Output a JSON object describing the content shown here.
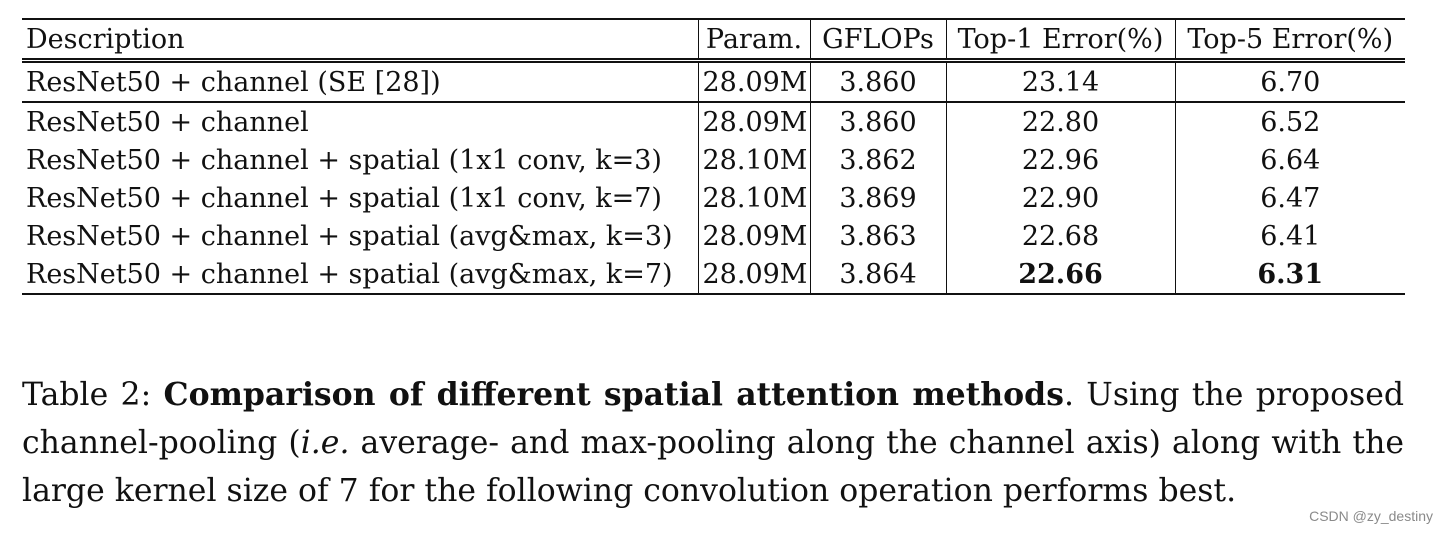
{
  "table": {
    "columns": [
      "Description",
      "Param.",
      "GFLOPs",
      "Top-1 Error(%)",
      "Top-5 Error(%)"
    ],
    "rows": [
      {
        "description": "ResNet50 + channel (SE [28])",
        "param": "28.09M",
        "gflops": "3.860",
        "top1": "23.14",
        "top5": "6.70",
        "bold_top1": false,
        "bold_top5": false
      },
      {
        "description": "ResNet50 + channel",
        "param": "28.09M",
        "gflops": "3.860",
        "top1": "22.80",
        "top5": "6.52",
        "bold_top1": false,
        "bold_top5": false
      },
      {
        "description": "ResNet50 + channel + spatial (1x1 conv, k=3)",
        "param": "28.10M",
        "gflops": "3.862",
        "top1": "22.96",
        "top5": "6.64",
        "bold_top1": false,
        "bold_top5": false
      },
      {
        "description": "ResNet50 + channel + spatial (1x1 conv, k=7)",
        "param": "28.10M",
        "gflops": "3.869",
        "top1": "22.90",
        "top5": "6.47",
        "bold_top1": false,
        "bold_top5": false
      },
      {
        "description": "ResNet50 + channel + spatial (avg&max, k=3)",
        "param": "28.09M",
        "gflops": "3.863",
        "top1": "22.68",
        "top5": "6.41",
        "bold_top1": false,
        "bold_top5": false
      },
      {
        "description": "ResNet50 + channel + spatial (avg&max, k=7)",
        "param": "28.09M",
        "gflops": "3.864",
        "top1": "22.66",
        "top5": "6.31",
        "bold_top1": true,
        "bold_top5": true
      }
    ]
  },
  "caption": {
    "label": "Table 2: ",
    "title": "Comparison of different spatial attention methods",
    "after_title": ". Using the proposed channel-pooling (",
    "italic": "i.e.",
    "rest": " average- and max-pooling along the channel axis) along with the large kernel size of 7 for the following convolution operation performs best."
  },
  "watermark": "CSDN @zy_destiny"
}
